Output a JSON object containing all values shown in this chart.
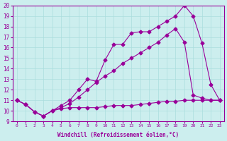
{
  "xlabel": "Windchill (Refroidissement éolien,°C)",
  "bg_color": "#cceeee",
  "grid_color": "#aadddd",
  "line_color": "#990099",
  "xlim": [
    -0.5,
    23.5
  ],
  "ylim": [
    9,
    20
  ],
  "xticks": [
    0,
    1,
    2,
    3,
    4,
    5,
    6,
    7,
    8,
    9,
    10,
    11,
    12,
    13,
    14,
    15,
    16,
    17,
    18,
    19,
    20,
    21,
    22,
    23
  ],
  "yticks": [
    9,
    10,
    11,
    12,
    13,
    14,
    15,
    16,
    17,
    18,
    19,
    20
  ],
  "line1_x": [
    0,
    1,
    2,
    3,
    4,
    5,
    6,
    7,
    8,
    9,
    10,
    11,
    12,
    13,
    14,
    15,
    16,
    17,
    18,
    19,
    20,
    21,
    22,
    23
  ],
  "line1_y": [
    11.0,
    10.6,
    9.9,
    9.5,
    10.0,
    10.2,
    10.3,
    10.3,
    10.3,
    10.3,
    10.4,
    10.5,
    10.5,
    10.5,
    10.6,
    10.7,
    10.8,
    10.9,
    10.9,
    11.0,
    11.0,
    11.0,
    11.0,
    11.0
  ],
  "line2_x": [
    0,
    1,
    2,
    3,
    4,
    5,
    6,
    7,
    8,
    9,
    10,
    11,
    12,
    13,
    14,
    15,
    16,
    17,
    18,
    19,
    20,
    21,
    22,
    23
  ],
  "line2_y": [
    11.0,
    10.6,
    9.9,
    9.5,
    10.0,
    10.5,
    11.0,
    12.0,
    13.0,
    12.8,
    14.8,
    16.3,
    16.3,
    17.4,
    17.5,
    17.5,
    18.0,
    18.5,
    19.0,
    20.0,
    19.0,
    16.4,
    12.5,
    11.0
  ],
  "line3_x": [
    0,
    1,
    2,
    3,
    4,
    5,
    6,
    7,
    8,
    9,
    10,
    11,
    12,
    13,
    14,
    15,
    16,
    17,
    18,
    19,
    20,
    21,
    22,
    23
  ],
  "line3_y": [
    11.0,
    10.6,
    9.9,
    9.5,
    10.0,
    10.3,
    10.7,
    11.3,
    12.0,
    12.7,
    13.3,
    13.8,
    14.5,
    15.0,
    15.5,
    16.0,
    16.5,
    17.2,
    17.8,
    16.5,
    11.5,
    11.2,
    11.0,
    11.0
  ],
  "marker_size": 2.5,
  "linewidth": 0.8
}
